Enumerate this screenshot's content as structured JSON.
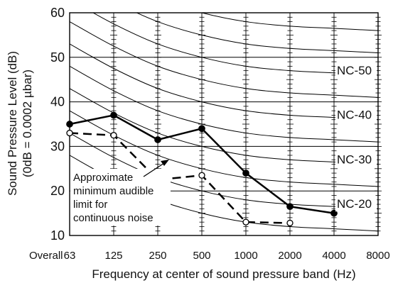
{
  "chart_data": {
    "type": "line",
    "title": "",
    "ylabel_line1": "Sound Pressure Level (dB)",
    "ylabel_line2": "(0dB = 0.0002 µbar)",
    "xlabel": "Frequency at center of sound pressure band (Hz)",
    "x_first_label": "Overall",
    "categories": [
      "63",
      "125",
      "250",
      "500",
      "1000",
      "2000",
      "4000",
      "8000"
    ],
    "ylim": [
      10,
      60
    ],
    "yticks": [
      "10",
      "20",
      "30",
      "40",
      "50",
      "60"
    ],
    "grid": true,
    "series": [
      {
        "style": "solid",
        "marker": "filled-circle",
        "color": "#000000",
        "values": [
          35,
          37,
          31.5,
          34,
          24,
          16.5,
          15,
          null
        ]
      },
      {
        "style": "dashed",
        "marker": "open-circle",
        "color": "#000000",
        "values": [
          33,
          32.5,
          22.5,
          23.5,
          13,
          12.8,
          null,
          null
        ]
      }
    ],
    "nc_curves": [
      {
        "label": "",
        "values": [
          78,
          72.5,
          68,
          65,
          63,
          62,
          61.5,
          61
        ]
      },
      {
        "label": "",
        "values": [
          73,
          67.5,
          63,
          60,
          58,
          57,
          56.5,
          56
        ]
      },
      {
        "label": "",
        "values": [
          68,
          62.5,
          58,
          55,
          53,
          52,
          51.5,
          51
        ]
      },
      {
        "label": "NC-50",
        "values": [
          63,
          57.5,
          53,
          50,
          48,
          47,
          46.5,
          46
        ]
      },
      {
        "label": "",
        "values": [
          58,
          52.5,
          48,
          45,
          43,
          42,
          41.5,
          41
        ]
      },
      {
        "label": "NC-40",
        "values": [
          53,
          47.5,
          43,
          40,
          38,
          37,
          36.5,
          36
        ]
      },
      {
        "label": "",
        "values": [
          48,
          42.5,
          38,
          35,
          33,
          32,
          31.5,
          31
        ]
      },
      {
        "label": "NC-30",
        "values": [
          43,
          37.5,
          33,
          30,
          28,
          27,
          26.5,
          26
        ]
      },
      {
        "label": "",
        "values": [
          38,
          32.5,
          28,
          25,
          23,
          22,
          21.5,
          21
        ]
      },
      {
        "label": "NC-20",
        "values": [
          33,
          27.5,
          23,
          20,
          18,
          17,
          16.5,
          16
        ]
      },
      {
        "label": "",
        "values": [
          28,
          22.5,
          18,
          15,
          13,
          12,
          11.5,
          11
        ]
      }
    ],
    "annotation": {
      "lines": [
        "Approximate",
        "minimum audible",
        "limit for",
        "continuous noise"
      ]
    }
  }
}
